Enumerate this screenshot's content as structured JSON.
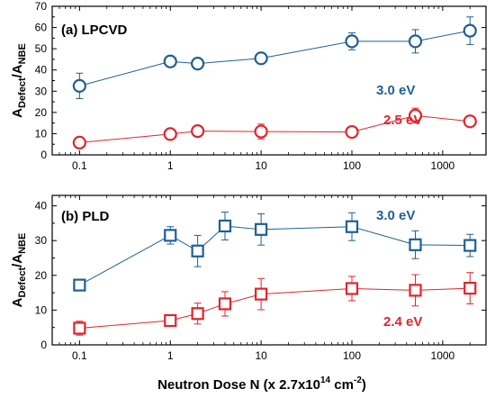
{
  "chart_data": [
    {
      "type": "line",
      "title": "(a) LPCVD",
      "ylabel_main": "A",
      "ylabel_sub1": "Defect",
      "ylabel_slash": "/A",
      "ylabel_sub2": "NBE",
      "xscale": "log",
      "xlim": [
        0.05,
        3000
      ],
      "ylim": [
        0,
        70
      ],
      "yticks": [
        0,
        10,
        20,
        30,
        40,
        50,
        60,
        70
      ],
      "xticks": [
        0.1,
        1,
        10,
        100,
        1000
      ],
      "xtick_labels": [
        "0.1",
        "1",
        "10",
        "100",
        "1000"
      ],
      "marker": "circle",
      "series": [
        {
          "name": "3.0 eV",
          "color": "#1f5f94",
          "x": [
            0.1,
            1,
            2,
            10,
            100,
            500,
            2000
          ],
          "y": [
            32.5,
            44,
            43,
            45.5,
            53.5,
            53.5,
            58.5
          ],
          "err": [
            6,
            1.5,
            1.5,
            1.5,
            4,
            5.5,
            6.5
          ]
        },
        {
          "name": "2.5 eV",
          "color": "#e0252b",
          "x": [
            0.1,
            1,
            2,
            10,
            100,
            500,
            2000
          ],
          "y": [
            5.8,
            9.8,
            11.2,
            11,
            10.8,
            18.5,
            15.8
          ],
          "err": [
            1.5,
            2.5,
            2.5,
            3.5,
            1.5,
            3.5,
            1.5
          ]
        }
      ]
    },
    {
      "type": "line",
      "title": "(b) PLD",
      "ylabel_main": "A",
      "ylabel_sub1": "Defect",
      "ylabel_slash": "/A",
      "ylabel_sub2": "NBE",
      "xscale": "log",
      "xlim": [
        0.05,
        3000
      ],
      "ylim": [
        0,
        43
      ],
      "yticks": [
        0,
        10,
        20,
        30,
        40
      ],
      "xticks": [
        0.1,
        1,
        10,
        100,
        1000
      ],
      "xtick_labels": [
        "0.1",
        "1",
        "10",
        "100",
        "1000"
      ],
      "marker": "square",
      "series": [
        {
          "name": "3.0 eV",
          "color": "#1f5f94",
          "x": [
            0.1,
            1,
            2,
            4,
            10,
            100,
            500,
            2000
          ],
          "y": [
            17.2,
            31.5,
            27,
            34.2,
            33.2,
            34,
            28.8,
            28.6
          ],
          "err": [
            0.8,
            2.5,
            4.5,
            4,
            4.5,
            4,
            4,
            3.2
          ]
        },
        {
          "name": "2.4 eV",
          "color": "#e0252b",
          "x": [
            0.1,
            1,
            2,
            4,
            10,
            100,
            500,
            2000
          ],
          "y": [
            4.8,
            7,
            9,
            11.8,
            14.6,
            16.2,
            15.7,
            16.3
          ],
          "err": [
            2,
            1.5,
            3,
            3.5,
            4.5,
            3.5,
            4.5,
            4.5
          ]
        }
      ]
    }
  ],
  "xlabel": {
    "main": "Neutron Dose N (x 2.7x10",
    "exponent": "14",
    "unit": " cm",
    "unit_exponent": "-2",
    "close": ")"
  }
}
